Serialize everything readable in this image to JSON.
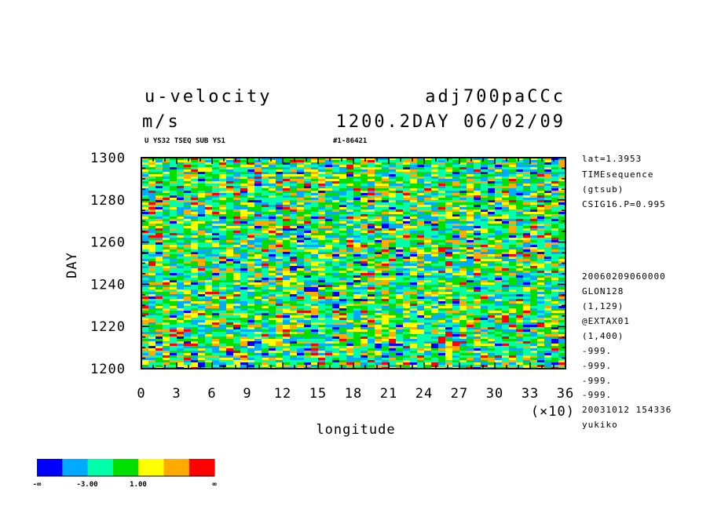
{
  "header": {
    "variable": "u-velocity",
    "units": "m/s",
    "experiment": "adj700paCCc",
    "date_line": "1200.2DAY 06/02/09",
    "subtitle": "U YS32 TSEQ SUB YS1",
    "code": "#1-86421"
  },
  "side_info": [
    "lat=1.3953",
    "TIMEsequence",
    "(gtsub)",
    "CSIG16.P=0.995",
    "20060209060000",
    "GLON128",
    "(1,129)",
    "@EXTAX01",
    "(1,400)",
    "-999.",
    "-999.",
    "-999.",
    "-999.",
    "20031012 154336",
    "yukiko"
  ],
  "chart_data": {
    "type": "heatmap",
    "xlabel": "longitude",
    "ylabel": "DAY",
    "x_multiplier": "(×10)",
    "xlim": [
      0,
      36
    ],
    "ylim": [
      1200,
      1300
    ],
    "x_ticks": [
      "0",
      "3",
      "6",
      "9",
      "12",
      "15",
      "18",
      "21",
      "24",
      "27",
      "30",
      "33",
      "36"
    ],
    "y_ticks": [
      "1200",
      "1220",
      "1240",
      "1260",
      "1280",
      "1300"
    ],
    "colorbar": {
      "colors": [
        "#0000ff",
        "#00aaff",
        "#00ffaa",
        "#00e000",
        "#ffff00",
        "#ffaa00",
        "#ff0000"
      ],
      "labels": [
        "-∞",
        "-3.00",
        "1.00",
        "∞"
      ]
    },
    "color_frequency": {
      "#0000ff": 4,
      "#00aaff": 18,
      "#00ffaa": 26,
      "#00e000": 22,
      "#ffff00": 16,
      "#ffaa00": 10,
      "#ff0000": 4
    }
  }
}
